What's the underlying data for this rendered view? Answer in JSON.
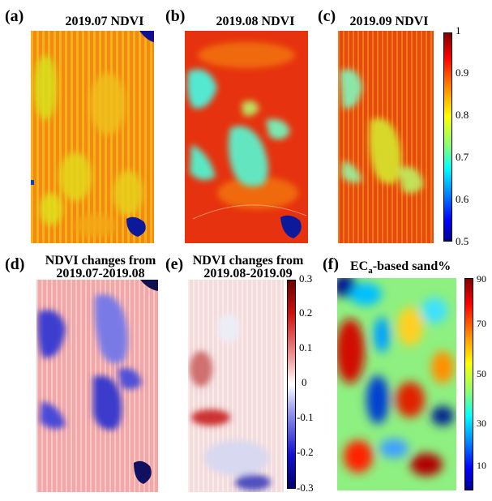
{
  "panels": [
    {
      "label": "(a)",
      "title": "2019.07 NDVI"
    },
    {
      "label": "(b)",
      "title": "2019.08 NDVI"
    },
    {
      "label": "(c)",
      "title": "2019.09 NDVI"
    },
    {
      "label": "(d)",
      "title_line1": "NDVI changes from",
      "title_line2": "2019.07-2019.08"
    },
    {
      "label": "(e)",
      "title_line1": "NDVI changes from",
      "title_line2": "2019.08-2019.09"
    },
    {
      "label": "(f)",
      "title_main": "EC",
      "title_sub": "a",
      "title_rest": "-based sand%"
    }
  ],
  "colorbars": {
    "ndvi": {
      "ticks": [
        "1",
        "0.9",
        "0.8",
        "0.7",
        "0.6",
        "0.5"
      ],
      "colormap": "jet"
    },
    "change": {
      "ticks": [
        "0.3",
        "0.2",
        "0.1",
        "0",
        "-0.1",
        "-0.2",
        "-0.3"
      ],
      "colormap": "blue-white-red"
    },
    "sand": {
      "ticks": [
        "90",
        "70",
        "50",
        "30",
        "10"
      ],
      "colormap": "jet"
    }
  }
}
